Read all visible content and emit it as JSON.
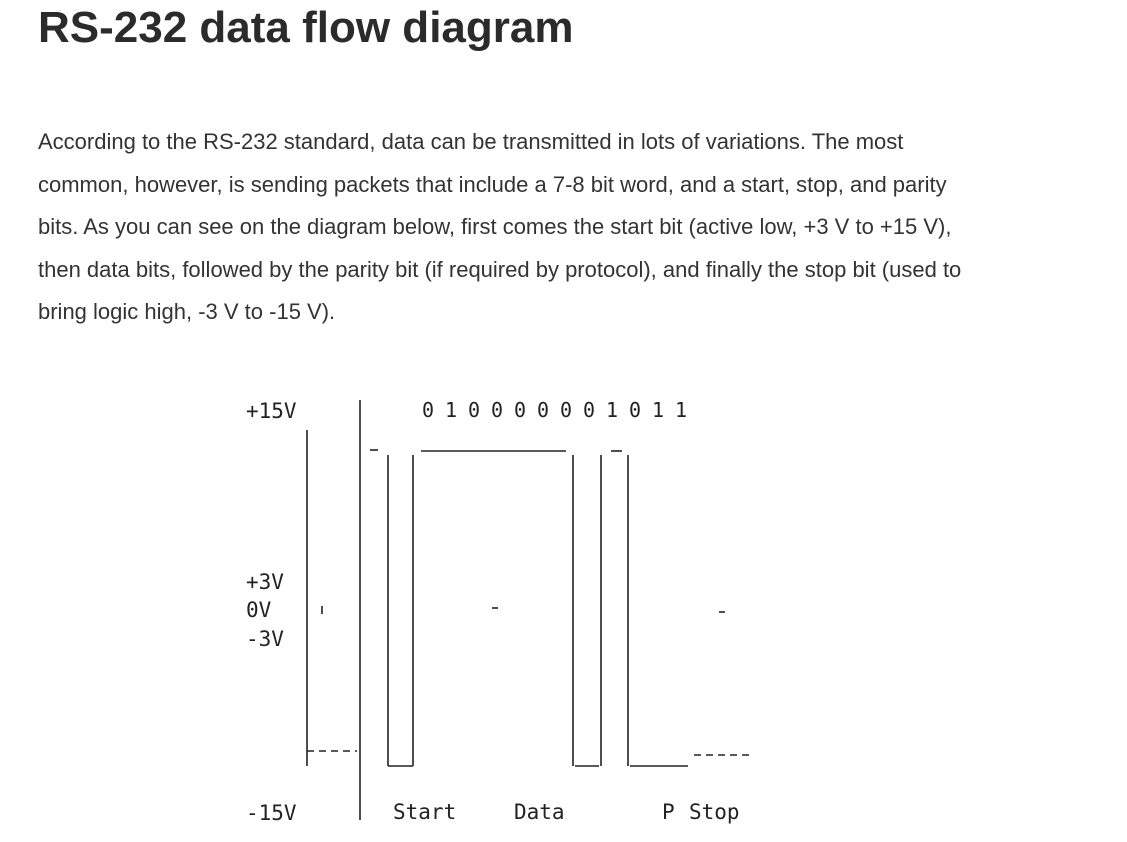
{
  "article": {
    "title": "RS-232 data flow diagram",
    "intro": "According to the RS-232 standard, data can be transmitted in lots of variations. The most common, however, is sending packets that include a 7-8 bit word, and a start, stop, and parity bits. As you can see on the diagram below, first comes the start bit (active low, +3 V to +15 V), then data bits, followed by the parity bit (if required by protocol), and finally the stop bit (used to bring logic high, -3 V to -15 V)."
  },
  "diagram": {
    "voltage_labels": {
      "plus15": "+15V",
      "plus3": "+3V",
      "zero": "0V",
      "minus3": "-3V",
      "minus15": "-15V"
    },
    "bit_sequence": [
      "0",
      "1",
      "0",
      "0",
      "0",
      "0",
      "0",
      "0",
      "1",
      "0",
      "1",
      "1"
    ],
    "section_labels": {
      "start": "Start",
      "data": "Data",
      "parity": "P",
      "stop": "Stop"
    }
  }
}
